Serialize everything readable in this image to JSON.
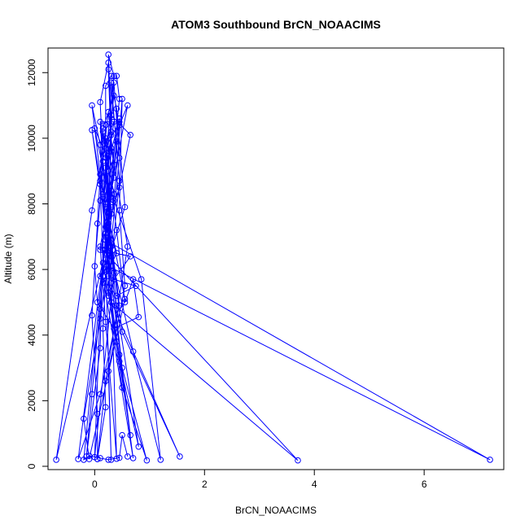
{
  "chart_data": {
    "type": "line",
    "title": "ATOM3 Southbound BrCN_NOAACIMS",
    "xlabel": "BrCN_NOAACIMS",
    "ylabel": "Altitude (m)",
    "xlim": [
      -0.85,
      7.45
    ],
    "ylim": [
      -100,
      12750
    ],
    "xticks": [
      0,
      2,
      4,
      6
    ],
    "yticks": [
      0,
      2000,
      4000,
      6000,
      8000,
      10000,
      12000
    ],
    "grid": false,
    "legend": "none",
    "series": [
      {
        "color": "#0000ff",
        "marker": "open-circle",
        "line": true,
        "points": [
          [
            0.05,
            220
          ],
          [
            0.2,
            1800
          ],
          [
            0.15,
            4200
          ],
          [
            0.25,
            7200
          ],
          [
            0.3,
            10200
          ],
          [
            0.25,
            12550
          ],
          [
            0.35,
            11900
          ],
          [
            0.2,
            9400
          ],
          [
            0.15,
            6600
          ],
          [
            0.1,
            3600
          ],
          [
            -0.15,
            300
          ],
          [
            -0.05,
            2200
          ],
          [
            0.15,
            5800
          ],
          [
            0.55,
            7900
          ],
          [
            0.4,
            10900
          ],
          [
            0.3,
            11700
          ],
          [
            0.45,
            8700
          ],
          [
            0.25,
            5300
          ],
          [
            0.5,
            2400
          ],
          [
            0.95,
            180
          ],
          [
            0.5,
            3000
          ],
          [
            0.3,
            6100
          ],
          [
            0.2,
            9100
          ],
          [
            0.35,
            11300
          ],
          [
            0.15,
            10300
          ],
          [
            0.05,
            7400
          ],
          [
            -0.05,
            4600
          ],
          [
            0.05,
            1600
          ],
          [
            0.05,
            220
          ],
          [
            0.2,
            2600
          ],
          [
            0.6,
            6700
          ],
          [
            0.3,
            9700
          ],
          [
            0.25,
            12100
          ],
          [
            0.4,
            9900
          ],
          [
            0.2,
            6900
          ],
          [
            -0.3,
            220
          ],
          [
            0.1,
            2200
          ],
          [
            0.45,
            4900
          ],
          [
            0.25,
            7600
          ],
          [
            0.45,
            10400
          ],
          [
            0.6,
            11000
          ],
          [
            0.3,
            8400
          ],
          [
            0.85,
            5700
          ],
          [
            1.2,
            200
          ],
          [
            0.7,
            3500
          ],
          [
            0.3,
            6400
          ],
          [
            0.1,
            8900
          ],
          [
            -0.05,
            11000
          ],
          [
            0.1,
            9800
          ],
          [
            0.2,
            7000
          ],
          [
            0.65,
            950
          ],
          [
            0.4,
            3800
          ],
          [
            0.15,
            6200
          ],
          [
            0.1,
            8600
          ],
          [
            0.25,
            10800
          ],
          [
            0.35,
            9200
          ],
          [
            0.2,
            6300
          ],
          [
            0.3,
            200
          ],
          [
            0.25,
            2900
          ],
          [
            0.55,
            5500
          ],
          [
            0.45,
            7800
          ],
          [
            0.5,
            11200
          ],
          [
            0.35,
            8100
          ],
          [
            0.15,
            5800
          ],
          [
            0.7,
            250
          ],
          [
            0.45,
            3400
          ],
          [
            0.2,
            6000
          ],
          [
            0.35,
            8300
          ],
          [
            0.15,
            10200
          ],
          [
            0.3,
            7700
          ],
          [
            0.25,
            5200
          ],
          [
            1.55,
            300
          ],
          [
            0.5,
            4100
          ],
          [
            0.3,
            6700
          ],
          [
            0.2,
            9500
          ],
          [
            0.0,
            10300
          ],
          [
            0.3,
            7900
          ],
          [
            0.2,
            6500
          ],
          [
            3.7,
            180
          ],
          [
            0.3,
            5000
          ],
          [
            0.2,
            7300
          ],
          [
            -0.05,
            10250
          ],
          [
            0.1,
            8700
          ],
          [
            0.25,
            6100
          ],
          [
            7.2,
            200
          ],
          [
            0.3,
            6800
          ],
          [
            0.45,
            9400
          ],
          [
            0.35,
            11700
          ],
          [
            0.25,
            9000
          ],
          [
            0.2,
            6600
          ],
          [
            -0.7,
            200
          ],
          [
            -0.05,
            7800
          ],
          [
            0.2,
            9900
          ],
          [
            0.35,
            10500
          ],
          [
            0.15,
            8200
          ],
          [
            0.35,
            5900
          ],
          [
            0.0,
            280
          ],
          [
            0.1,
            4800
          ],
          [
            0.2,
            7100
          ],
          [
            0.3,
            9600
          ],
          [
            0.45,
            10600
          ],
          [
            0.2,
            8000
          ],
          [
            0.3,
            5600
          ],
          [
            0.4,
            230
          ],
          [
            0.2,
            4400
          ],
          [
            0.1,
            6700
          ],
          [
            0.35,
            8800
          ],
          [
            0.2,
            10000
          ],
          [
            0.25,
            7400
          ],
          [
            0.4,
            4900
          ],
          [
            0.8,
            600
          ],
          [
            0.45,
            3200
          ],
          [
            0.25,
            5800
          ],
          [
            0.15,
            8300
          ],
          [
            0.3,
            10100
          ],
          [
            0.25,
            7600
          ],
          [
            0.55,
            5100
          ],
          [
            -0.1,
            220
          ],
          [
            -0.2,
            1450
          ],
          [
            0.1,
            4500
          ],
          [
            0.3,
            6900
          ],
          [
            0.15,
            9300
          ],
          [
            0.1,
            11100
          ],
          [
            0.25,
            12300
          ],
          [
            0.3,
            10700
          ],
          [
            0.65,
            10100
          ],
          [
            0.45,
            8500
          ],
          [
            0.1,
            6600
          ],
          [
            0.65,
            6400
          ],
          [
            0.35,
            5700
          ],
          [
            0.75,
            5500
          ],
          [
            0.4,
            5200
          ],
          [
            0.1,
            5800
          ],
          [
            0.15,
            5600
          ],
          [
            0.4,
            6500
          ],
          [
            0.2,
            7900
          ],
          [
            0.1,
            10500
          ],
          [
            0.45,
            10500
          ],
          [
            0.2,
            9700
          ],
          [
            0.4,
            7200
          ],
          [
            0.55,
            5000
          ],
          [
            0.7,
            5700
          ],
          [
            0.8,
            4550
          ],
          [
            0.35,
            4200
          ],
          [
            0.05,
            5000
          ],
          [
            0.0,
            6100
          ],
          [
            0.1,
            8100
          ],
          [
            0.2,
            10400
          ],
          [
            0.2,
            11600
          ],
          [
            0.3,
            11900
          ],
          [
            0.4,
            11900
          ],
          [
            0.45,
            11200
          ],
          [
            -0.2,
            200
          ],
          [
            -0.1,
            320
          ],
          [
            0.1,
            250
          ],
          [
            0.25,
            200
          ],
          [
            0.45,
            260
          ],
          [
            0.5,
            950
          ],
          [
            0.6,
            300
          ]
        ]
      }
    ]
  }
}
